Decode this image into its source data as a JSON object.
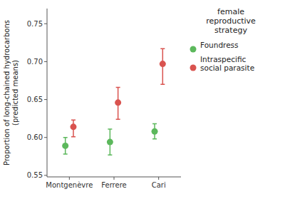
{
  "chart_data": {
    "type": "errorbar",
    "categories": [
      "Montgenèvre",
      "Ferrere",
      "Cari"
    ],
    "series": [
      {
        "name": "Foundress",
        "color": "#5cb85c",
        "marker": "circle",
        "values": [
          0.589,
          0.594,
          0.608
        ],
        "error_low": [
          0.011,
          0.017,
          0.01
        ],
        "error_high": [
          0.011,
          0.017,
          0.01
        ]
      },
      {
        "name": "Intraspecific\nsocial parasite",
        "color": "#d9534f",
        "marker": "circle",
        "values": [
          0.614,
          0.646,
          0.697
        ],
        "error_low": [
          0.013,
          0.022,
          0.027
        ],
        "error_high": [
          0.009,
          0.02,
          0.02
        ]
      }
    ],
    "y_label": "Proportion of long-chained hydrocarbons\n(predicted means)",
    "legend_title": "female\nreproductive\nstrategy",
    "legend": "right",
    "grid": false,
    "ylim": [
      0.548,
      0.77
    ],
    "yticks": [
      0.55,
      {
        "value": 0.6,
        "label": "0.60"
      },
      0.65,
      {
        "value": 0.7,
        "label": "0.70"
      },
      0.75
    ]
  }
}
